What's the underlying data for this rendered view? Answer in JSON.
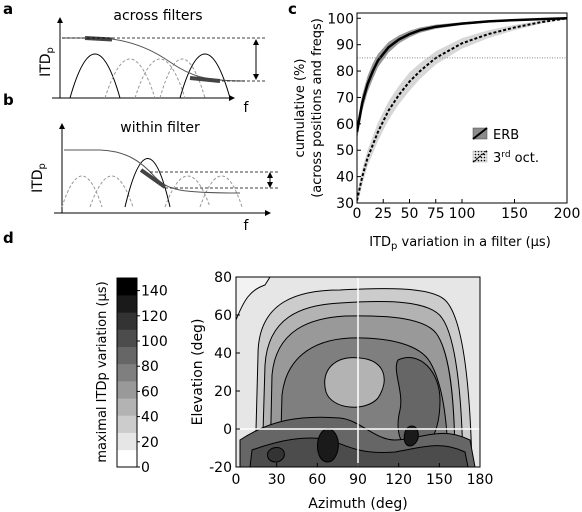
{
  "panels": {
    "a": {
      "letter": "a",
      "title": "across filters",
      "ylabel_main": "ITD",
      "ylabel_sub": "p",
      "xlabel": "f"
    },
    "b": {
      "letter": "b",
      "title": "within filter",
      "ylabel_main": "ITD",
      "ylabel_sub": "p",
      "xlabel": "f"
    },
    "c": {
      "letter": "c"
    },
    "d": {
      "letter": "d"
    }
  },
  "chart_data": [
    {
      "type": "line",
      "panel": "c",
      "xlabel_main": "ITD",
      "xlabel_sub": "p",
      "xlabel_rest": " variation in a filter (µs)",
      "ylabel_line1": "cumulative (%)",
      "ylabel_line2": "(across positions and freqs)",
      "xlim": [
        0,
        200
      ],
      "ylim": [
        30,
        102
      ],
      "xticks": [
        "0",
        "25",
        "50",
        "75",
        "100",
        "150",
        "200"
      ],
      "xtick_values": [
        0,
        25,
        50,
        75,
        100,
        150,
        200
      ],
      "yticks": [
        "30",
        "40",
        "50",
        "60",
        "70",
        "80",
        "90",
        "100"
      ],
      "ytick_values": [
        30,
        40,
        50,
        60,
        70,
        80,
        90,
        100
      ],
      "reference_line_y": 85,
      "legend_position": "center-right",
      "series": [
        {
          "name": "ERB",
          "style": "solid",
          "color": "#000000",
          "band_color": "#8c8c8c",
          "x": [
            0,
            5,
            10,
            15,
            20,
            30,
            40,
            50,
            60,
            75,
            100,
            125,
            150,
            175,
            200
          ],
          "y": [
            57,
            68,
            75,
            80,
            84,
            89,
            92,
            94,
            95.5,
            96.8,
            98,
            98.8,
            99.3,
            99.7,
            100
          ],
          "y_low": [
            54,
            65,
            72,
            77,
            81.5,
            87,
            90.5,
            92.8,
            94.5,
            96,
            97.5,
            98.4,
            99,
            99.5,
            99.9
          ],
          "y_high": [
            60,
            71,
            78,
            83,
            86.5,
            91,
            93.5,
            95.3,
            96.5,
            97.6,
            98.5,
            99.2,
            99.6,
            99.9,
            100
          ]
        },
        {
          "name_main": "3",
          "name_sup": "rd",
          "name_rest": " oct.",
          "style": "dashed",
          "color": "#000000",
          "band_color": "#d3d3d3",
          "x": [
            0,
            5,
            10,
            20,
            30,
            40,
            50,
            60,
            75,
            100,
            125,
            150,
            175,
            200
          ],
          "y": [
            31,
            40,
            47,
            57,
            65,
            71,
            76,
            80,
            85,
            90.5,
            94,
            96.5,
            98.5,
            100
          ],
          "y_low": [
            29,
            37,
            44,
            53.5,
            61.5,
            67.5,
            72.5,
            77,
            82.5,
            88.5,
            92.5,
            95.5,
            98,
            99.8
          ],
          "y_high": [
            33,
            43,
            50,
            60.5,
            68.5,
            74.5,
            79.5,
            83,
            87.5,
            92.5,
            95.5,
            97.5,
            99,
            100
          ]
        }
      ]
    },
    {
      "type": "heatmap",
      "panel": "d",
      "xlabel": "Azimuth (deg)",
      "ylabel": "Elevation (deg)",
      "xlim": [
        0,
        180
      ],
      "ylim": [
        -20,
        80
      ],
      "xticks": [
        "0",
        "30",
        "60",
        "90",
        "120",
        "150",
        "180"
      ],
      "xtick_values": [
        0,
        30,
        60,
        90,
        120,
        150,
        180
      ],
      "yticks": [
        "-20",
        "0",
        "20",
        "40",
        "60",
        "80"
      ],
      "ytick_values": [
        -20,
        0,
        20,
        40,
        60,
        80
      ],
      "reference_lines": {
        "azimuth": 90,
        "elevation": 0
      },
      "colorbar": {
        "label": "maximal ITDp variation (µs)",
        "levels": [
          0,
          20,
          40,
          60,
          80,
          100,
          120,
          140
        ],
        "tick_labels": [
          "0",
          "20",
          "40",
          "60",
          "80",
          "100",
          "120",
          "140"
        ],
        "colors": [
          "#ffffff",
          "#e6e6e6",
          "#cccccc",
          "#b3b3b3",
          "#999999",
          "#7f7f7f",
          "#666666",
          "#4c4c4c",
          "#333333",
          "#1a1a1a",
          "#000000"
        ]
      },
      "band_fill": [
        "#e6e6e6",
        "#cccccc",
        "#b3b3b3",
        "#999999",
        "#7f7f7f",
        "#666666",
        "#4c4c4c",
        "#333333"
      ],
      "contour_region_values": [
        15,
        30,
        50,
        65,
        80,
        95,
        110,
        125,
        145
      ],
      "hotspots": [
        {
          "azimuth": 68,
          "elevation": 0,
          "value": 140
        },
        {
          "azimuth": 135,
          "elevation": 0,
          "value": 140
        },
        {
          "azimuth": 40,
          "elevation": -10,
          "value": 125
        }
      ]
    }
  ]
}
